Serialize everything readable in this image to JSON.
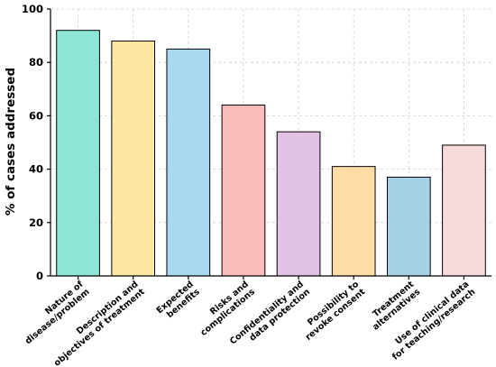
{
  "chart_data": {
    "type": "bar",
    "title": "",
    "xlabel": "",
    "ylabel": "% of cases addressed",
    "ylim": [
      0,
      100
    ],
    "yticks": [
      0,
      20,
      40,
      60,
      80,
      100
    ],
    "grid": true,
    "categories": [
      [
        "Nature of",
        "disease/problem"
      ],
      [
        "Description and",
        "objectives of treatment"
      ],
      [
        "Expected",
        "benefits"
      ],
      [
        "Risks and",
        "complications"
      ],
      [
        "Confidentiality and",
        "data protection"
      ],
      [
        "Possibility to",
        "revoke consent"
      ],
      [
        "Treatment",
        "alternatives"
      ],
      [
        "Use of clinical data",
        "for teaching/research"
      ]
    ],
    "values": [
      92,
      88,
      85,
      64,
      54,
      41,
      37,
      49
    ],
    "colors": [
      "#8de5d6",
      "#fde8a3",
      "#a7d9f0",
      "#fbbcbc",
      "#e2c2e4",
      "#fddca7",
      "#a6d1e4",
      "#f9dadb"
    ]
  }
}
